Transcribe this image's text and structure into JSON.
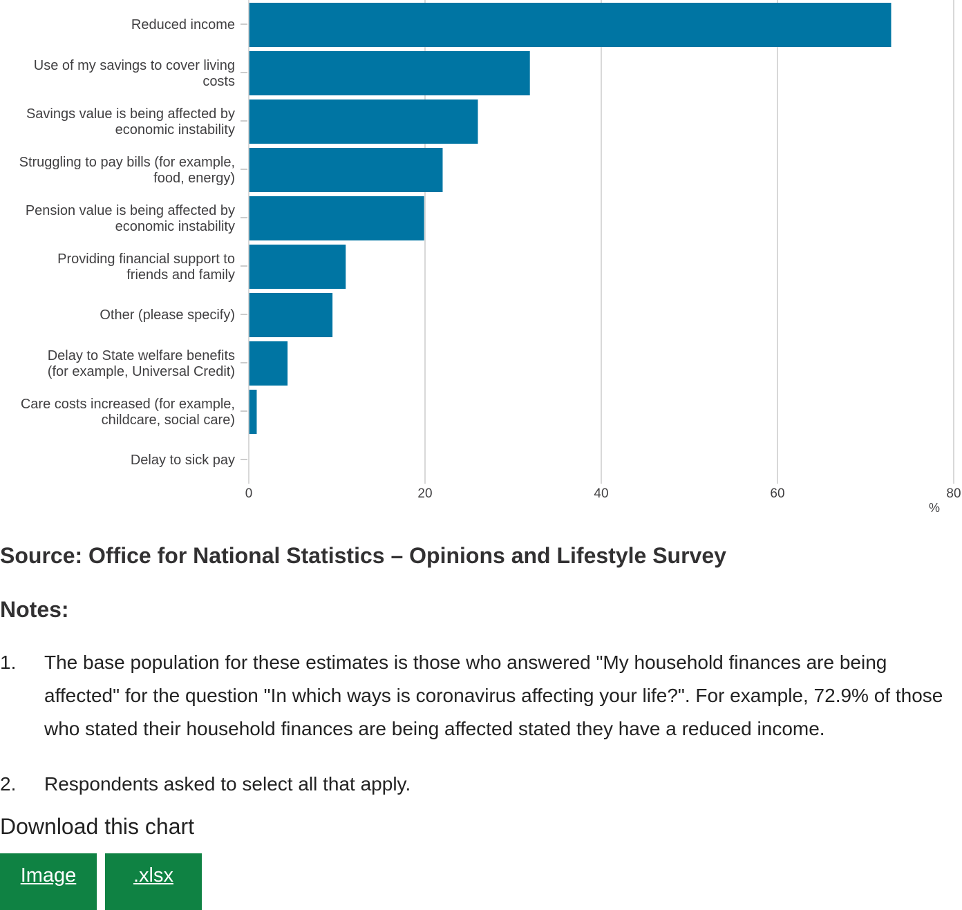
{
  "chart_data": {
    "type": "bar",
    "orientation": "horizontal",
    "categories": [
      [
        "Reduced income"
      ],
      [
        "Use of my savings to cover living",
        "costs"
      ],
      [
        "Savings value is being affected by",
        "economic instability"
      ],
      [
        "Struggling to pay bills (for example,",
        "food, energy)"
      ],
      [
        "Pension value is being affected by",
        "economic instability"
      ],
      [
        "Providing financial support to",
        "friends and family"
      ],
      [
        "Other (please specify)"
      ],
      [
        "Delay to State welfare benefits",
        "(for example, Universal Credit)"
      ],
      [
        "Care costs increased (for example,",
        "childcare, social care)"
      ],
      [
        "Delay to sick pay"
      ]
    ],
    "values": [
      72.9,
      31.9,
      26.0,
      22.0,
      19.9,
      11.0,
      9.5,
      4.4,
      0.9,
      0.0
    ],
    "xlim": [
      0,
      80
    ],
    "xticks": [
      0,
      20,
      40,
      60,
      80
    ],
    "xunit": "%",
    "grid": true,
    "bar_color": "#0075a3"
  },
  "source": "Source: Office for National Statistics – Opinions and Lifestyle Survey",
  "notes": {
    "title": "Notes:",
    "items": [
      {
        "num": "1.",
        "text": "The base population for these estimates is those who answered \"My household finances are being affected\" for the question \"In which ways is coronavirus affecting your life?\". For example, 72.9% of those who stated their household finances are being affected stated they have a reduced income."
      },
      {
        "num": "2.",
        "text": "Respondents asked to select all that apply."
      }
    ]
  },
  "download": {
    "title": "Download this chart",
    "image_label": "Image",
    "xlsx_label": ".xlsx"
  }
}
